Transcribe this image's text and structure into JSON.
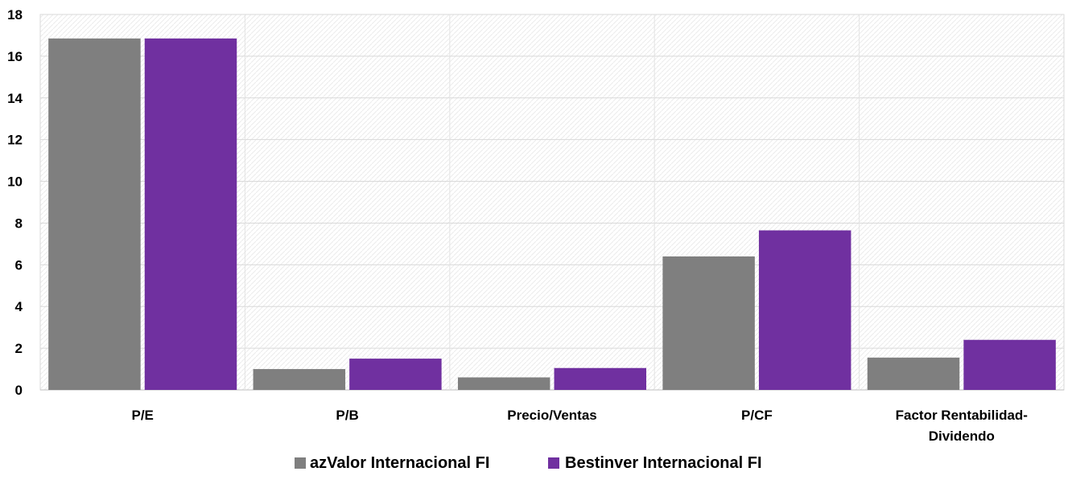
{
  "chart_data": {
    "type": "bar",
    "categories": [
      "P/E",
      "P/B",
      "Precio/Ventas",
      "P/CF",
      "Factor Rentabilidad-Dividendo"
    ],
    "category_lines": [
      [
        "P/E"
      ],
      [
        "P/B"
      ],
      [
        "Precio/Ventas"
      ],
      [
        "P/CF"
      ],
      [
        "Factor Rentabilidad-",
        "Dividendo"
      ]
    ],
    "series": [
      {
        "name": "azValor Internacional FI",
        "color": "#7f7f7f",
        "values": [
          16.85,
          1.0,
          0.6,
          6.4,
          1.55
        ]
      },
      {
        "name": "Bestinver Internacional FI",
        "color": "#7030a0",
        "values": [
          16.85,
          1.5,
          1.05,
          7.65,
          2.4
        ]
      }
    ],
    "ylim": [
      0,
      18
    ],
    "yticks": [
      0,
      2,
      4,
      6,
      8,
      10,
      12,
      14,
      16,
      18
    ],
    "title": "",
    "xlabel": "",
    "ylabel": "",
    "grid": true,
    "legend_position": "bottom"
  }
}
